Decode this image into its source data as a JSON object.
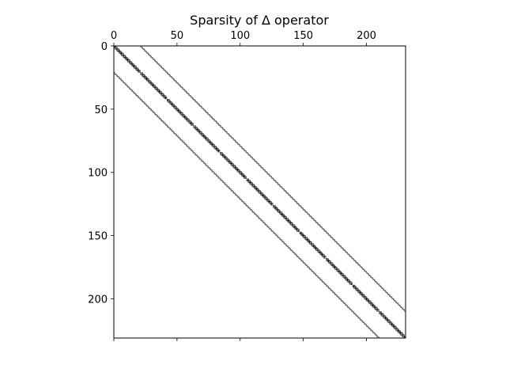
{
  "chart_data": {
    "type": "spy",
    "title": "Sparsity of Δ operator",
    "matrix_size": 231,
    "block_size": 21,
    "xlim": [
      0,
      231
    ],
    "ylim": [
      0,
      231
    ],
    "x_axis_position": "top",
    "x_ticks": [
      0,
      50,
      100,
      150,
      200
    ],
    "y_ticks": [
      0,
      50,
      100,
      150,
      200
    ],
    "y_inverted": true,
    "grid": false,
    "marker": "small square",
    "marker_color": "#000000",
    "diagonal_offsets": [
      -21,
      -1,
      0,
      1,
      21
    ]
  }
}
